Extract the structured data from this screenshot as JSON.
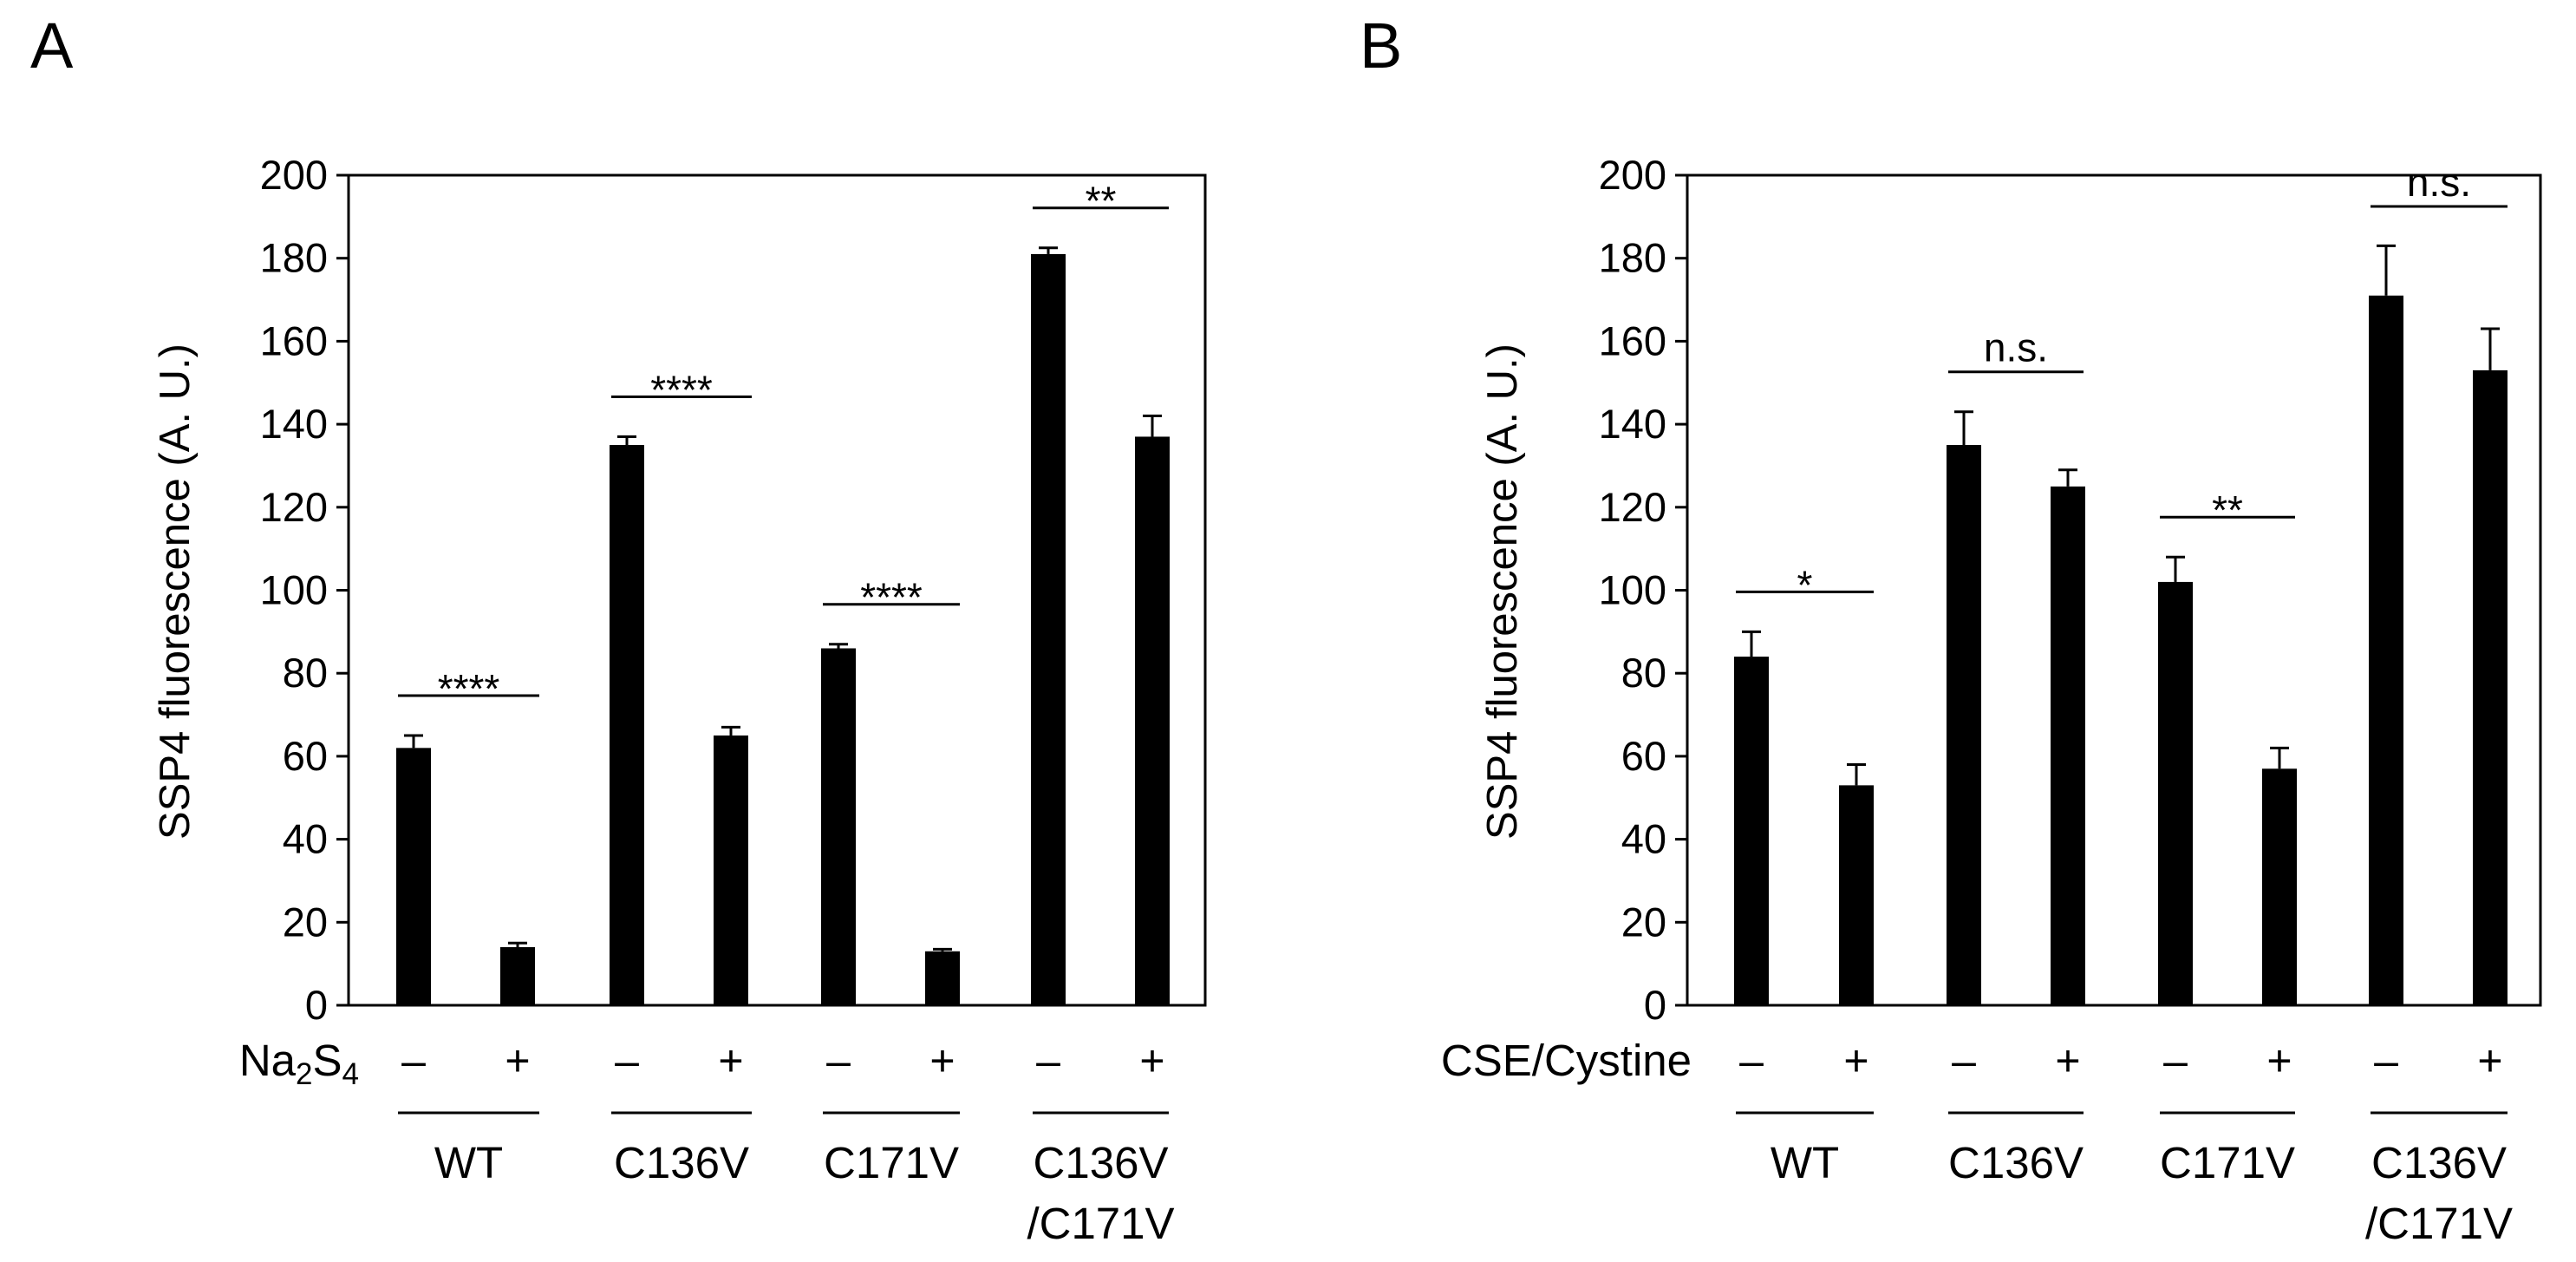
{
  "chart_data": [
    {
      "type": "bar",
      "panel": "A",
      "ylabel": "SSP4 fluorescence (A. U.)",
      "ylim": [
        0,
        200
      ],
      "yticks": [
        0,
        20,
        40,
        60,
        80,
        100,
        120,
        140,
        160,
        180,
        200
      ],
      "treatment_label": "Na",
      "treatment_sub1": "2",
      "treatment_mid": "S",
      "treatment_sub2": "4",
      "sign_labels": [
        "–",
        "+",
        "–",
        "+",
        "–",
        "+",
        "–",
        "+"
      ],
      "groups": [
        {
          "name": "WT",
          "name2": ""
        },
        {
          "name": "C136V",
          "name2": ""
        },
        {
          "name": "C171V",
          "name2": ""
        },
        {
          "name": "C136V",
          "name2": "/C171V"
        }
      ],
      "values": [
        62,
        14,
        135,
        65,
        86,
        13,
        181,
        137
      ],
      "errors": [
        3,
        1,
        2,
        2,
        1,
        0.5,
        1.5,
        5
      ],
      "significance": [
        "****",
        "****",
        "****",
        "**"
      ],
      "color": "#000000"
    },
    {
      "type": "bar",
      "panel": "B",
      "ylabel": "SSP4 fluorescence (A. U.)",
      "ylim": [
        0,
        200
      ],
      "yticks": [
        0,
        20,
        40,
        60,
        80,
        100,
        120,
        140,
        160,
        180,
        200
      ],
      "treatment_label": "CSE/Cystine",
      "sign_labels": [
        "–",
        "+",
        "–",
        "+",
        "–",
        "+",
        "–",
        "+"
      ],
      "groups": [
        {
          "name": "WT",
          "name2": ""
        },
        {
          "name": "C136V",
          "name2": ""
        },
        {
          "name": "C171V",
          "name2": ""
        },
        {
          "name": "C136V",
          "name2": "/C171V"
        }
      ],
      "values": [
        84,
        53,
        135,
        125,
        102,
        57,
        171,
        153
      ],
      "errors": [
        6,
        5,
        8,
        4,
        6,
        5,
        12,
        10
      ],
      "significance": [
        "*",
        "n.s.",
        "**",
        "n.s."
      ],
      "color": "#000000"
    }
  ]
}
